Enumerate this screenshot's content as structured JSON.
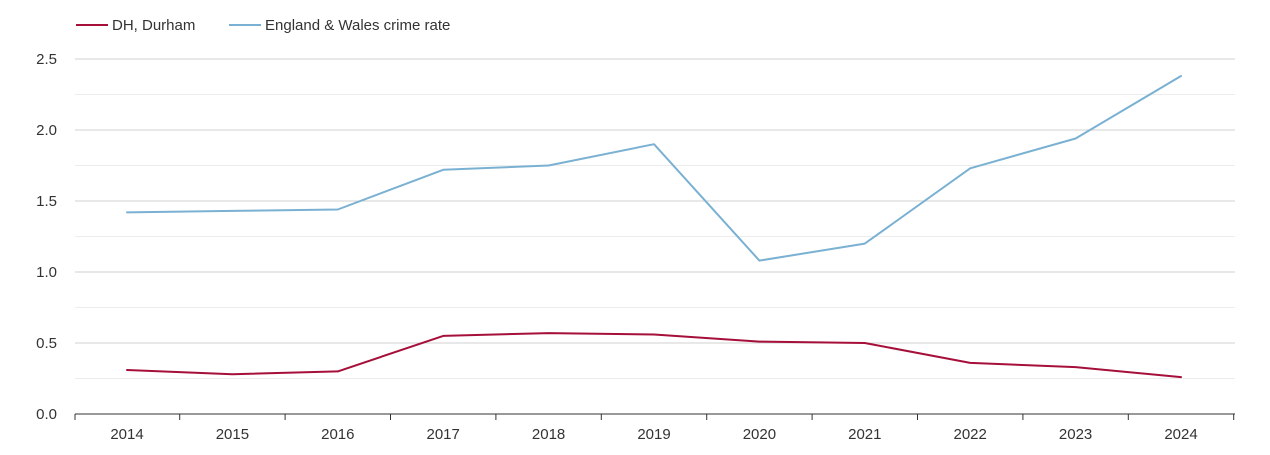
{
  "chart_data": {
    "type": "line",
    "categories": [
      "2014",
      "2015",
      "2016",
      "2017",
      "2018",
      "2019",
      "2020",
      "2021",
      "2022",
      "2023",
      "2024"
    ],
    "series": [
      {
        "name": "DH, Durham",
        "color": "#a50f3a",
        "values": [
          0.31,
          0.28,
          0.3,
          0.55,
          0.57,
          0.56,
          0.51,
          0.5,
          0.36,
          0.33,
          0.26
        ]
      },
      {
        "name": "England & Wales crime rate",
        "color": "#7ab1d3",
        "values": [
          1.42,
          1.43,
          1.44,
          1.72,
          1.75,
          1.9,
          1.08,
          1.2,
          1.73,
          1.94,
          2.38
        ]
      }
    ],
    "ylim": [
      0,
      2.5
    ],
    "yticks": [
      "0.0",
      "0.5",
      "1.0",
      "1.5",
      "2.0",
      "2.5"
    ],
    "grid": true,
    "legend_position": "top-left",
    "title": "",
    "xlabel": "",
    "ylabel": ""
  }
}
